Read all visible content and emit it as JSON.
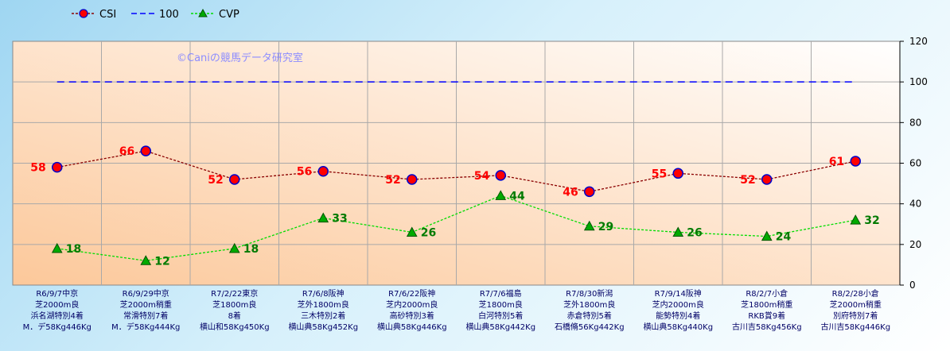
{
  "chart_data": {
    "type": "line",
    "categories": [
      [
        "R6/9/7中京",
        "芝2000m良",
        "浜名湖特別4着",
        "M．デ58Kg446Kg"
      ],
      [
        "R6/9/29中京",
        "芝2000m稍重",
        "常滑特別7着",
        "M．デ58Kg444Kg"
      ],
      [
        "R7/2/22東京",
        "芝1800m良",
        "8着",
        "横山和58Kg450Kg"
      ],
      [
        "R7/6/8阪神",
        "芝外1800m良",
        "三木特別2着",
        "横山典58Kg452Kg"
      ],
      [
        "R7/6/22阪神",
        "芝内2000m良",
        "高砂特別3着",
        "横山典58Kg446Kg"
      ],
      [
        "R7/7/6福島",
        "芝1800m良",
        "白河特別5着",
        "横山典58Kg442Kg"
      ],
      [
        "R7/8/30新潟",
        "芝外1800m良",
        "赤倉特別5着",
        "石橋脩56Kg442Kg"
      ],
      [
        "R7/9/14阪神",
        "芝内2000m良",
        "能勢特別4着",
        "横山典58Kg440Kg"
      ],
      [
        "R8/2/7小倉",
        "芝1800m稍重",
        "RKB賞9着",
        "古川吉58Kg456Kg"
      ],
      [
        "R8/2/28小倉",
        "芝2000m稍重",
        "別府特別7着",
        "古川吉58Kg446Kg"
      ]
    ],
    "series": [
      {
        "name": "CSI",
        "values": [
          58,
          66,
          52,
          56,
          52,
          54,
          46,
          55,
          52,
          61
        ],
        "color": "#8b0000",
        "marker_fill": "#ff0000",
        "marker_edge": "#0000cc",
        "style": "dotted"
      },
      {
        "name": "100",
        "values": [
          100,
          100,
          100,
          100,
          100,
          100,
          100,
          100,
          100,
          100
        ],
        "color": "#0000ff",
        "style": "dashed"
      },
      {
        "name": "CVP",
        "values": [
          18,
          12,
          18,
          33,
          26,
          44,
          29,
          26,
          24,
          32
        ],
        "color": "#00dd00",
        "marker_fill": "#00aa00",
        "style": "dotted"
      }
    ],
    "ylim": [
      0,
      120
    ],
    "yticks": [
      0,
      20,
      40,
      60,
      80,
      100,
      120
    ],
    "y_axis_side": "right",
    "grid": true,
    "legend_position": "top-left",
    "watermark": "©Caniの競馬データ研究室",
    "plot_background": [
      "#ffffff",
      "#fcc89a"
    ],
    "label_colors": {
      "csi": "#ff0000",
      "cvp": "#007a00"
    }
  }
}
